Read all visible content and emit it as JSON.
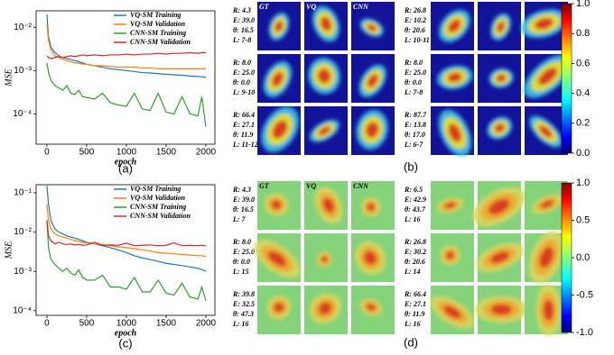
{
  "chart_data": [
    {
      "type": "line",
      "caption": "(a)",
      "ylabel": "MSE",
      "xlabel": "epoch",
      "log_y": true,
      "legend": "upper right",
      "x": [
        0,
        20,
        50,
        100,
        150,
        200,
        250,
        300,
        350,
        400,
        450,
        500,
        600,
        700,
        800,
        900,
        1000,
        1100,
        1200,
        1300,
        1400,
        1500,
        1600,
        1700,
        1800,
        1900,
        1950,
        2000
      ],
      "xlim": [
        -136,
        2114
      ],
      "xticks": [
        0,
        500,
        1000,
        1500,
        2000
      ],
      "ylim": [
        2e-05,
        0.024
      ],
      "yticks": [
        {
          "value": 0.0001,
          "label": "10⁻⁴"
        },
        {
          "value": 0.001,
          "label": "10⁻³"
        },
        {
          "value": 0.01,
          "label": "10⁻²"
        }
      ],
      "series": [
        {
          "name": "VQ-SM Training",
          "color": "#1f77b4",
          "values": [
            0.02,
            0.006,
            0.0035,
            0.0026,
            0.0022,
            0.002,
            0.0019,
            0.0018,
            0.0017,
            0.0016,
            0.0015,
            0.0014,
            0.0013,
            0.0012,
            0.0011,
            0.00105,
            0.001,
            0.00095,
            0.0009,
            0.00088,
            0.00085,
            0.00082,
            0.0008,
            0.00078,
            0.00075,
            0.00073,
            0.00072,
            0.0007
          ]
        },
        {
          "name": "VQ-SM Validation",
          "color": "#ff7f0e",
          "values": [
            0.012,
            0.005,
            0.003,
            0.0022,
            0.002,
            0.0018,
            0.0017,
            0.0016,
            0.0015,
            0.0015,
            0.0014,
            0.0014,
            0.0013,
            0.0013,
            0.00125,
            0.0012,
            0.0012,
            0.0012,
            0.00115,
            0.00115,
            0.0011,
            0.0011,
            0.0011,
            0.0011,
            0.0011,
            0.0011,
            0.0011,
            0.0011
          ]
        },
        {
          "name": "CNN-SM Training",
          "color": "#2ca02c",
          "values": [
            0.0015,
            0.0009,
            0.0006,
            0.00045,
            0.0004,
            0.00035,
            0.00045,
            0.0003,
            0.00028,
            0.00035,
            0.00025,
            0.00024,
            0.00022,
            0.0003,
            0.00018,
            0.00016,
            0.00015,
            0.0003,
            0.00013,
            0.00012,
            0.0003,
            0.00011,
            0.0001,
            0.00025,
            0.0001,
            9e-05,
            0.00025,
            5e-05
          ]
        },
        {
          "name": "CNN-SM Validation",
          "color": "#d62728",
          "values": [
            0.0022,
            0.002,
            0.0019,
            0.002,
            0.0021,
            0.002,
            0.0021,
            0.0022,
            0.0021,
            0.0022,
            0.0023,
            0.0022,
            0.0023,
            0.0022,
            0.0023,
            0.0023,
            0.0024,
            0.0023,
            0.0024,
            0.0024,
            0.0025,
            0.0024,
            0.0025,
            0.0025,
            0.0026,
            0.0025,
            0.0026,
            0.0026
          ]
        }
      ]
    },
    {
      "type": "line",
      "caption": "(c)",
      "ylabel": "MSE",
      "xlabel": "epoch",
      "log_y": true,
      "legend": "upper right",
      "x": [
        0,
        20,
        50,
        100,
        150,
        200,
        250,
        300,
        350,
        400,
        450,
        500,
        600,
        700,
        800,
        900,
        1000,
        1100,
        1200,
        1300,
        1400,
        1500,
        1600,
        1700,
        1800,
        1900,
        1950,
        2000
      ],
      "xlim": [
        -136,
        2114
      ],
      "xticks": [
        0,
        500,
        1000,
        1500,
        2000
      ],
      "ylim": [
        7.6e-05,
        0.16
      ],
      "yticks": [
        {
          "value": 0.0001,
          "label": "10⁻⁴"
        },
        {
          "value": 0.001,
          "label": "10⁻³"
        },
        {
          "value": 0.01,
          "label": "10⁻²"
        },
        {
          "value": 0.1,
          "label": "10⁻¹"
        }
      ],
      "series": [
        {
          "name": "VQ-SM Training",
          "color": "#1f77b4",
          "values": [
            0.15,
            0.05,
            0.02,
            0.012,
            0.01,
            0.009,
            0.008,
            0.0075,
            0.007,
            0.0065,
            0.006,
            0.0055,
            0.005,
            0.0045,
            0.004,
            0.0035,
            0.003,
            0.0025,
            0.0022,
            0.002,
            0.0018,
            0.0016,
            0.0015,
            0.0014,
            0.0013,
            0.0012,
            0.0011,
            0.001
          ]
        },
        {
          "name": "VQ-SM Validation",
          "color": "#ff7f0e",
          "values": [
            0.05,
            0.02,
            0.012,
            0.009,
            0.008,
            0.0075,
            0.007,
            0.0065,
            0.006,
            0.0058,
            0.0055,
            0.0053,
            0.005,
            0.0048,
            0.0045,
            0.0042,
            0.004,
            0.0038,
            0.0035,
            0.0033,
            0.003,
            0.0029,
            0.0028,
            0.0027,
            0.0026,
            0.0025,
            0.0025,
            0.0024
          ]
        },
        {
          "name": "CNN-SM Training",
          "color": "#2ca02c",
          "values": [
            0.02,
            0.004,
            0.002,
            0.0015,
            0.0012,
            0.001,
            0.0012,
            0.0009,
            0.0008,
            0.0011,
            0.0007,
            0.0006,
            0.0006,
            0.0008,
            0.0004,
            0.0004,
            0.00035,
            0.0007,
            0.0003,
            0.0003,
            0.0006,
            0.00028,
            0.00025,
            0.0005,
            0.00022,
            0.0002,
            0.0004,
            0.00018
          ]
        },
        {
          "name": "CNN-SM Validation",
          "color": "#d62728",
          "values": [
            0.02,
            0.008,
            0.006,
            0.005,
            0.0055,
            0.005,
            0.0048,
            0.005,
            0.0047,
            0.0048,
            0.0046,
            0.0047,
            0.0055,
            0.0046,
            0.0047,
            0.0046,
            0.0052,
            0.0045,
            0.0046,
            0.0047,
            0.0045,
            0.0046,
            0.0053,
            0.0045,
            0.0046,
            0.0045,
            0.0046,
            0.0045
          ]
        }
      ]
    }
  ],
  "panels": [
    {
      "caption": "(b)",
      "headers": [
        "GT",
        "VQ",
        "CNN"
      ],
      "groups": [
        [
          [
            "R: 4.3",
            "E: 39.0",
            "θ: 16.5",
            "L: 7-8"
          ],
          [
            "R: 8.0",
            "E: 25.0",
            "θ: 0.0",
            "L: 9-10"
          ],
          [
            "R: 66.4",
            "E: 27.1",
            "θ: 11.9",
            "L: 11-12"
          ]
        ],
        [
          [
            "R: 26.8",
            "E: 10.2",
            "θ: 20.6",
            "L: 10-11"
          ],
          [
            "R: 8.0",
            "E: 25.0",
            "θ: 0.0",
            "L: 7-8"
          ],
          [
            "R: 87.7",
            "E: 13.8",
            "θ: 17.0",
            "L: 6-7"
          ]
        ]
      ],
      "colorbar": {
        "lim": [
          0,
          1
        ],
        "ticks": [
          {
            "value": 1,
            "label": "1.0"
          },
          {
            "value": 0.8,
            "label": "0.8"
          },
          {
            "value": 0.6,
            "label": "0.6"
          },
          {
            "value": 0.4,
            "label": "0.4"
          },
          {
            "value": 0.2,
            "label": "0.2"
          },
          {
            "value": 0,
            "label": "0.0"
          }
        ]
      }
    },
    {
      "caption": "(d)",
      "headers": [
        "GT",
        "VQ",
        "CNN"
      ],
      "groups": [
        [
          [
            "R: 4.3",
            "E: 39.0",
            "θ: 16.5",
            "L: 7"
          ],
          [
            "R: 8.0",
            "E: 25.0",
            "θ: 0.0",
            "L: 15"
          ],
          [
            "R: 39.8",
            "E: 32.5",
            "θ: 47.3",
            "L: 16"
          ]
        ],
        [
          [
            "R: 6.5",
            "E: 42.9",
            "θ: 43.7",
            "L: 16"
          ],
          [
            "R: 26.8",
            "E: 30.2",
            "θ: 20.6",
            "L: 14"
          ],
          [
            "R: 66.4",
            "E: 27.1",
            "θ: 11.9",
            "L: 16"
          ]
        ]
      ],
      "colorbar": {
        "lim": [
          -1,
          1
        ],
        "ticks": [
          {
            "value": 1,
            "label": "1.0"
          },
          {
            "value": 0.5,
            "label": "0.5"
          },
          {
            "value": 0,
            "label": "0.0"
          },
          {
            "value": -0.5,
            "label": "-0.5"
          },
          {
            "value": -1,
            "label": "-1.0"
          }
        ]
      }
    }
  ]
}
